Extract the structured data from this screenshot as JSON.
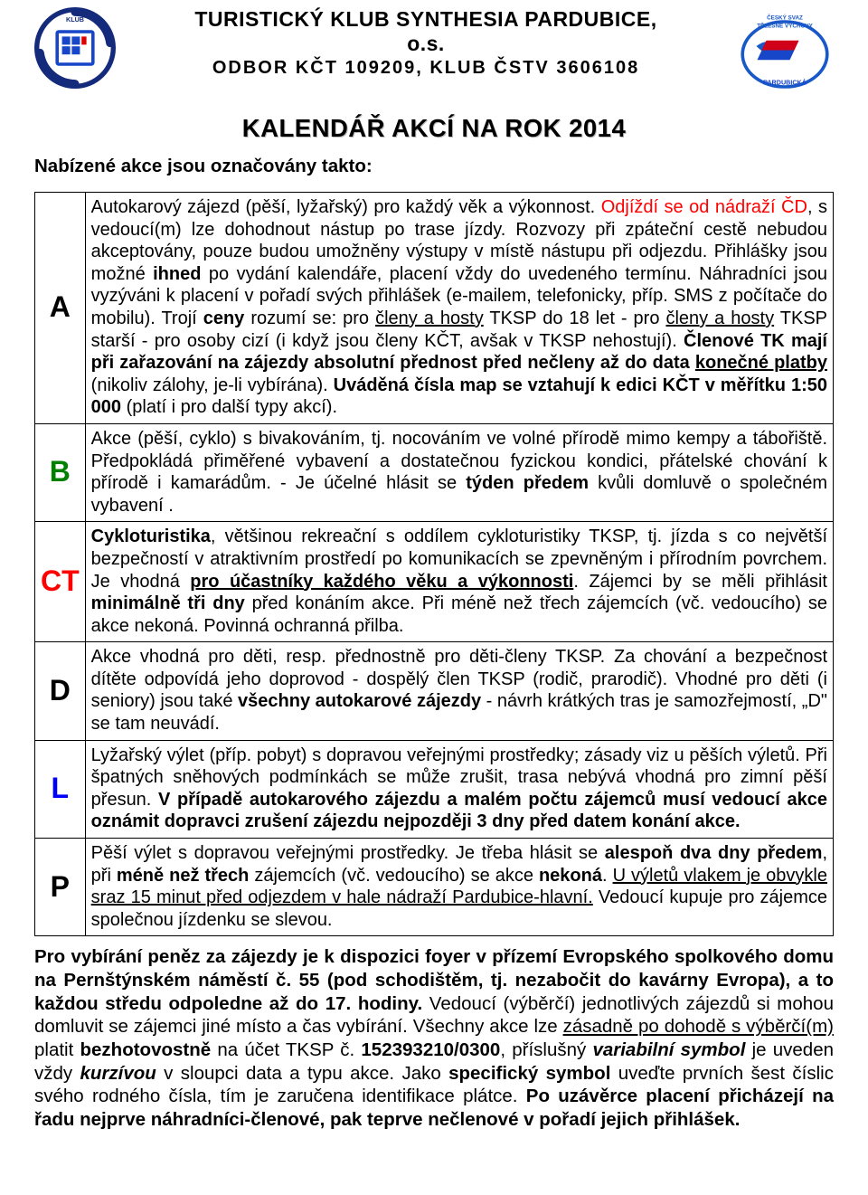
{
  "header": {
    "org_line1": "TURISTICKÝ KLUB SYNTHESIA PARDUBICE,",
    "org_line2": "o.s.",
    "org_line3": "ODBOR KČT 109209, KLUB ČSTV 3606108",
    "main_title": "KALENDÁŘ AKCÍ NA ROK 2014",
    "intro": "Nabízené akce jsou označovány takto:"
  },
  "legend": [
    {
      "code": "A",
      "code_color": "#000000",
      "cells": [
        {
          "t": "Autokarový zájezd (pěší, lyžařský) pro každý věk a výkonnost. "
        },
        {
          "t": "Odjíždí se od nádraží ČD",
          "color": "#ff0000"
        },
        {
          "t": ", s vedoucí(m) lze dohodnout nástup po trase jízdy. Rozvozy při zpáteční cestě nebudou akceptovány, pouze budou umožněny výstupy v místě nástupu při odjezdu. Přihlášky jsou možné "
        },
        {
          "t": "ihned",
          "bold": true
        },
        {
          "t": " po vydání kalendáře, placení vždy do uvedeného termínu. Náhradníci jsou vyzýváni k placení v pořadí svých přihlášek (e-mailem, telefonicky, příp. SMS z počítače do mobilu). Trojí "
        },
        {
          "t": "ceny",
          "bold": true
        },
        {
          "t": " rozumí se: pro "
        },
        {
          "t": "členy a hosty",
          "ul": true
        },
        {
          "t": " TKSP do 18 let - pro "
        },
        {
          "t": "členy a hosty",
          "ul": true
        },
        {
          "t": " TKSP starší - pro osoby cizí (i když jsou členy KČT, avšak v TKSP nehostují). "
        },
        {
          "t": "Členové TK mají při zařazování na zájezdy absolutní přednost před nečleny až do data ",
          "bold": true
        },
        {
          "t": "konečné platby",
          "bold": true,
          "ul": true
        },
        {
          "t": " (nikoliv zálohy, je-li vybírána). "
        },
        {
          "t": "Uváděná čísla map se vztahují k edici KČT v měřítku 1:50 000",
          "bold": true
        },
        {
          "t": " (platí i pro další typy akcí)."
        }
      ]
    },
    {
      "code": "B",
      "code_color": "#008000",
      "cells": [
        {
          "t": "Akce (pěší, cyklo) s bivakováním, tj. nocováním ve volné přírodě mimo kempy a tábořiště. Předpokládá přiměřené vybavení a dostatečnou fyzickou kondici, přátelské chování k přírodě\ni kamarádům. - Je účelné hlásit se "
        },
        {
          "t": "týden předem",
          "bold": true
        },
        {
          "t": " kvůli domluvě o společném vybavení ."
        }
      ]
    },
    {
      "code": "CT",
      "code_color": "#ff0000",
      "cells": [
        {
          "t": "Cykloturistika",
          "bold": true
        },
        {
          "t": ", většinou rekreační s oddílem cykloturistiky TKSP, tj. jízda s co největší bezpečností v atraktivním prostředí po komunikacích se zpevněným i přírodním povrchem. Je vhodná "
        },
        {
          "t": "pro účastníky každého věku a výkonnosti",
          "bold": true,
          "ul": true
        },
        {
          "t": ". Zájemci by se měli přihlásit "
        },
        {
          "t": "minimálně tři dny",
          "bold": true
        },
        {
          "t": " před konáním akce. Při méně než třech zájemcích (vč. vedoucího) se akce nekoná. Povinná ochranná přilba."
        }
      ]
    },
    {
      "code": "D",
      "code_color": "#000000",
      "cells": [
        {
          "t": "Akce vhodná pro děti, resp. přednostně pro děti-členy TKSP. Za chování a bezpečnost dítěte odpovídá jeho doprovod - dospělý člen TKSP (rodič, prarodič). Vhodné pro děti (i seniory) jsou také "
        },
        {
          "t": "všechny autokarové zájezdy",
          "bold": true
        },
        {
          "t": " - návrh krátkých tras je samozřejmostí, „D\" se tam neuvádí."
        }
      ]
    },
    {
      "code": "L",
      "code_color": "#0000ff",
      "cells": [
        {
          "t": "Lyžařský výlet (příp. pobyt) s dopravou veřejnými prostředky; zásady viz u pěších výletů. Při špatných sněhových podmínkách se může zrušit, trasa nebývá vhodná pro zimní pěší přesun. "
        },
        {
          "t": "V případě autokarového zájezdu a malém počtu zájemců musí vedoucí akce oznámit dopravci zrušení zájezdu nejpozději 3 dny před datem konání akce.",
          "bold": true
        }
      ]
    },
    {
      "code": "P",
      "code_color": "#000000",
      "cells": [
        {
          "t": "Pěší výlet s dopravou veřejnými prostředky. Je třeba hlásit se "
        },
        {
          "t": "alespoň dva dny předem",
          "bold": true
        },
        {
          "t": ", při "
        },
        {
          "t": "méně než třech",
          "bold": true
        },
        {
          "t": " zájemcích (vč. vedoucího) se akce "
        },
        {
          "t": "nekoná",
          "bold": true
        },
        {
          "t": ". "
        },
        {
          "t": "U výletů vlakem je obvykle sraz 15 minut před odjezdem v hale nádraží Pardubice-hlavní.",
          "ul": true
        },
        {
          "t": " Vedoucí kupuje pro zájemce společnou jízdenku se slevou."
        }
      ]
    }
  ],
  "footer": {
    "cells": [
      {
        "t": "Pro vybírání peněz za zájezdy je k dispozici foyer v přízemí Evropského spolkového domu na Pernštýnském náměstí č. 55 (pod schodištěm, tj. nezabočit do kavárny Evropa), a to každou středu odpoledne až do 17. hodiny.",
        "bold": true
      },
      {
        "t": " Vedoucí (výběrčí) jednotlivých zájezdů si mohou domluvit se zájemci jiné místo a čas vybírání. Všechny akce lze "
      },
      {
        "t": "zásadně po dohodě s výběrčí(m)",
        "ul": true
      },
      {
        "t": " platit "
      },
      {
        "t": "bezhotovostně",
        "bold": true
      },
      {
        "t": " na účet TKSP č. "
      },
      {
        "t": "152393210/0300",
        "bold": true
      },
      {
        "t": ", příslušný "
      },
      {
        "t": "variabilní symbol",
        "bold": true,
        "italic": true
      },
      {
        "t": " je uveden vždy "
      },
      {
        "t": "kurzívou",
        "bold": true,
        "italic": true
      },
      {
        "t": " v sloupci data a typu akce. Jako "
      },
      {
        "t": "specifický symbol",
        "bold": true
      },
      {
        "t": " uveďte prvních šest číslic svého rodného čísla, tím je zaručena identifikace plátce. "
      },
      {
        "t": "Po uzávěrce placení přicházejí na řadu nejprve náhradníci-členové, pak teprve nečlenové v pořadí jejich přihlášek.",
        "bold": true
      }
    ]
  },
  "colors": {
    "red": "#ff0000",
    "green": "#008000",
    "blue": "#0000ff",
    "black": "#000000"
  }
}
